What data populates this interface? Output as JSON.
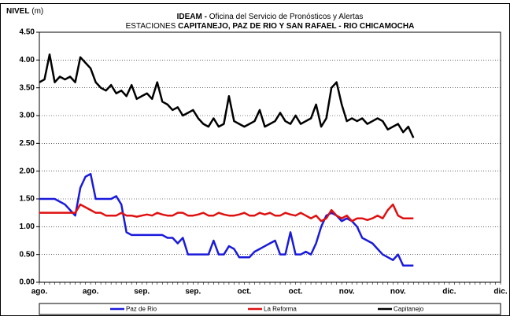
{
  "chart_data": {
    "type": "line",
    "y_label": "NIVEL",
    "y_unit": "(m)",
    "title_bold": "IDEAM -",
    "title": "Oficina del Servicio de Pronósticos y Alertas",
    "subtitle": "ESTACIONES",
    "subtitle_bold": "CAPITANEJO, PAZ DE RIO Y SAN RAFAEL -  RIO CHICAMOCHA",
    "categories": [
      "ago.",
      null,
      null,
      null,
      null,
      null,
      null,
      null,
      null,
      null,
      "ago.",
      null,
      null,
      null,
      null,
      null,
      null,
      null,
      null,
      null,
      "sep.",
      null,
      null,
      null,
      null,
      null,
      null,
      null,
      null,
      null,
      "sep.",
      null,
      null,
      null,
      null,
      null,
      null,
      null,
      null,
      null,
      "oct.",
      null,
      null,
      null,
      null,
      null,
      null,
      null,
      null,
      null,
      "oct.",
      null,
      null,
      null,
      null,
      null,
      null,
      null,
      null,
      null,
      "nov.",
      null,
      null,
      null,
      null,
      null,
      null,
      null,
      null,
      null,
      "nov.",
      null,
      null,
      null,
      null,
      null,
      null,
      null,
      null,
      null,
      "dic.",
      null,
      null,
      null,
      null,
      null,
      null,
      null,
      null,
      null,
      "dic."
    ],
    "ylim": [
      0,
      4.5
    ],
    "yticks": [
      {
        "value": 0,
        "label": "0.00"
      },
      {
        "value": 0.5,
        "label": "0.50"
      },
      {
        "value": 1,
        "label": "1.00"
      },
      {
        "value": 1.5,
        "label": "1.50"
      },
      {
        "value": 2,
        "label": "2.00"
      },
      {
        "value": 2.5,
        "label": "2.50"
      },
      {
        "value": 3,
        "label": "3.00"
      },
      {
        "value": 3.5,
        "label": "3.50"
      },
      {
        "value": 4,
        "label": "4.00"
      },
      {
        "value": 4.5,
        "label": "4.50"
      }
    ],
    "grid": true,
    "legend": "bottom",
    "series": [
      {
        "name": "Paz de Rio",
        "color": "#1a1adb",
        "values": [
          1.5,
          1.5,
          1.5,
          1.5,
          1.45,
          1.4,
          1.3,
          1.2,
          1.7,
          1.9,
          1.95,
          1.5,
          1.5,
          1.5,
          1.5,
          1.55,
          1.4,
          0.9,
          0.85,
          0.85,
          0.85,
          0.85,
          0.85,
          0.85,
          0.85,
          0.8,
          0.8,
          0.7,
          0.8,
          0.5,
          0.5,
          0.5,
          0.5,
          0.5,
          0.75,
          0.5,
          0.5,
          0.65,
          0.6,
          0.45,
          0.45,
          0.45,
          0.55,
          0.6,
          0.65,
          0.7,
          0.75,
          0.5,
          0.5,
          0.9,
          0.5,
          0.5,
          0.55,
          0.5,
          0.7,
          1.0,
          1.2,
          1.25,
          1.2,
          1.1,
          1.15,
          1.1,
          1.0,
          0.8,
          0.75,
          0.7,
          0.6,
          0.5,
          0.45,
          0.4,
          0.5,
          0.3,
          0.3,
          0.3,
          null,
          null,
          null,
          null,
          null,
          null,
          null,
          null,
          null,
          null,
          null,
          null,
          null,
          null,
          null,
          null,
          null
        ]
      },
      {
        "name": "La Reforma",
        "color": "#e01010",
        "values": [
          1.25,
          1.25,
          1.25,
          1.25,
          1.25,
          1.25,
          1.25,
          1.25,
          1.4,
          1.35,
          1.3,
          1.25,
          1.25,
          1.2,
          1.2,
          1.2,
          1.25,
          1.2,
          1.2,
          1.18,
          1.2,
          1.22,
          1.2,
          1.25,
          1.22,
          1.2,
          1.2,
          1.25,
          1.25,
          1.2,
          1.2,
          1.22,
          1.25,
          1.2,
          1.2,
          1.25,
          1.22,
          1.2,
          1.2,
          1.22,
          1.25,
          1.2,
          1.2,
          1.25,
          1.22,
          1.25,
          1.2,
          1.2,
          1.25,
          1.22,
          1.2,
          1.25,
          1.2,
          1.15,
          1.2,
          1.1,
          1.15,
          1.3,
          1.2,
          1.15,
          1.2,
          1.1,
          1.15,
          1.15,
          1.12,
          1.15,
          1.2,
          1.15,
          1.3,
          1.4,
          1.2,
          1.15,
          1.15,
          1.15,
          null,
          null,
          null,
          null,
          null,
          null,
          null,
          null,
          null,
          null,
          null,
          null,
          null,
          null,
          null,
          null,
          null
        ]
      },
      {
        "name": "Capitanejo",
        "color": "#000000",
        "values": [
          3.6,
          3.65,
          4.1,
          3.6,
          3.7,
          3.65,
          3.7,
          3.6,
          4.05,
          3.95,
          3.85,
          3.6,
          3.5,
          3.45,
          3.55,
          3.4,
          3.45,
          3.35,
          3.55,
          3.3,
          3.35,
          3.4,
          3.3,
          3.6,
          3.25,
          3.2,
          3.1,
          3.15,
          3.0,
          3.05,
          3.1,
          2.95,
          2.85,
          2.8,
          2.95,
          2.8,
          2.85,
          3.35,
          2.9,
          2.85,
          2.8,
          2.85,
          2.9,
          3.1,
          2.8,
          2.85,
          2.9,
          3.05,
          2.9,
          2.85,
          3.0,
          2.85,
          2.9,
          2.95,
          3.2,
          2.8,
          2.95,
          3.5,
          3.6,
          3.2,
          2.9,
          2.95,
          2.9,
          2.95,
          2.85,
          2.9,
          2.95,
          2.9,
          2.75,
          2.8,
          2.85,
          2.7,
          2.8,
          2.6,
          null,
          null,
          null,
          null,
          null,
          null,
          null,
          null,
          null,
          null,
          null,
          null,
          null,
          null,
          null,
          null,
          null
        ]
      }
    ]
  }
}
